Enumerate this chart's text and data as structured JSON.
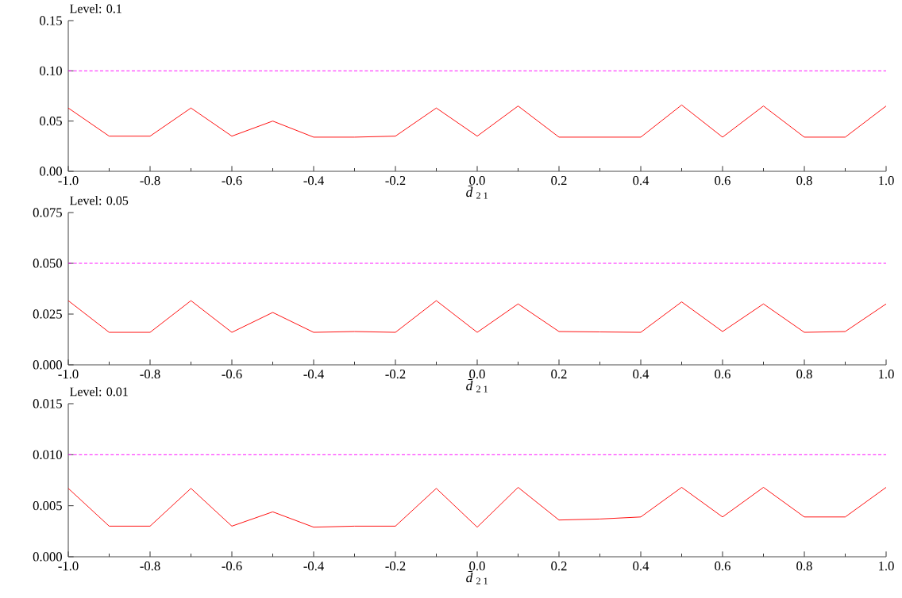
{
  "chart_data": [
    {
      "type": "line",
      "title": "Level: 0.1",
      "xlabel": "*d̄*$_{2 1}$",
      "x": [
        -1.0,
        -0.9,
        -0.8,
        -0.7,
        -0.6,
        -0.5,
        -0.4,
        -0.3,
        -0.2,
        -0.1,
        0.0,
        0.1,
        0.2,
        0.3,
        0.4,
        0.5,
        0.6,
        0.7,
        0.8,
        0.9,
        1.0
      ],
      "series": [
        {
          "color": "#ff0000",
          "values": [
            0.063,
            0.035,
            0.035,
            0.063,
            0.035,
            0.05,
            0.034,
            0.034,
            0.035,
            0.063,
            0.035,
            0.065,
            0.034,
            0.034,
            0.034,
            0.066,
            0.034,
            0.065,
            0.034,
            0.034,
            0.065
          ]
        }
      ],
      "xlim": [
        -1.0,
        1.0
      ],
      "ylim": [
        0,
        0.15
      ],
      "xticks": [
        {
          "value": -1.0,
          "label": "-1.0"
        },
        {
          "value": -0.8,
          "label": "-0.8"
        },
        {
          "value": -0.6,
          "label": "-0.6"
        },
        {
          "value": -0.4,
          "label": "-0.4"
        },
        {
          "value": -0.2,
          "label": "-0.2"
        },
        {
          "value": 0.0,
          "label": "0.0"
        },
        {
          "value": 0.2,
          "label": "0.2"
        },
        {
          "value": 0.4,
          "label": "0.4"
        },
        {
          "value": 0.6,
          "label": "0.6"
        },
        {
          "value": 0.8,
          "label": "0.8"
        },
        {
          "value": 1.0,
          "label": "1.0"
        }
      ],
      "yticks": [
        {
          "value": 0,
          "label": "0.00"
        },
        {
          "value": 0.05,
          "label": "0.05"
        },
        {
          "value": 0.1,
          "label": "0.10"
        },
        {
          "value": 0.15,
          "label": "0.15"
        }
      ],
      "ref_lines": [
        {
          "axis": "y",
          "value": 0.1,
          "color": "#ff00ff",
          "line_style": "dashed"
        }
      ],
      "marker": "none"
    },
    {
      "type": "line",
      "title": "Level: 0.05",
      "xlabel": "*d̄*$_{2 1}$",
      "x": [
        -1.0,
        -0.9,
        -0.8,
        -0.7,
        -0.6,
        -0.5,
        -0.4,
        -0.3,
        -0.2,
        -0.1,
        0.0,
        0.1,
        0.2,
        0.3,
        0.4,
        0.5,
        0.6,
        0.7,
        0.8,
        0.9,
        1.0
      ],
      "series": [
        {
          "color": "#ff0000",
          "values": [
            0.0316,
            0.016,
            0.016,
            0.0316,
            0.016,
            0.0258,
            0.016,
            0.0164,
            0.016,
            0.0316,
            0.016,
            0.03,
            0.0164,
            0.0162,
            0.016,
            0.031,
            0.0164,
            0.03,
            0.016,
            0.0164,
            0.03
          ]
        }
      ],
      "xlim": [
        -1.0,
        1.0
      ],
      "ylim": [
        0,
        0.075
      ],
      "xticks": [
        {
          "value": -1.0,
          "label": "-1.0"
        },
        {
          "value": -0.8,
          "label": "-0.8"
        },
        {
          "value": -0.6,
          "label": "-0.6"
        },
        {
          "value": -0.4,
          "label": "-0.4"
        },
        {
          "value": -0.2,
          "label": "-0.2"
        },
        {
          "value": 0.0,
          "label": "0.0"
        },
        {
          "value": 0.2,
          "label": "0.2"
        },
        {
          "value": 0.4,
          "label": "0.4"
        },
        {
          "value": 0.6,
          "label": "0.6"
        },
        {
          "value": 0.8,
          "label": "0.8"
        },
        {
          "value": 1.0,
          "label": "1.0"
        }
      ],
      "yticks": [
        {
          "value": 0,
          "label": "0.000"
        },
        {
          "value": 0.025,
          "label": "0.025"
        },
        {
          "value": 0.05,
          "label": "0.050"
        },
        {
          "value": 0.075,
          "label": "0.075"
        }
      ],
      "ref_lines": [
        {
          "axis": "y",
          "value": 0.05,
          "color": "#ff00ff",
          "line_style": "dashed"
        }
      ],
      "marker": "none"
    },
    {
      "type": "line",
      "title": "Level: 0.01",
      "xlabel": "*d̄*$_{2 1}$",
      "x": [
        -1.0,
        -0.9,
        -0.8,
        -0.7,
        -0.6,
        -0.5,
        -0.4,
        -0.3,
        -0.2,
        -0.1,
        0.0,
        0.1,
        0.2,
        0.3,
        0.4,
        0.5,
        0.6,
        0.7,
        0.8,
        0.9,
        1.0
      ],
      "series": [
        {
          "color": "#ff0000",
          "values": [
            0.0067,
            0.003,
            0.003,
            0.0067,
            0.003,
            0.0044,
            0.0029,
            0.003,
            0.003,
            0.0067,
            0.0029,
            0.0068,
            0.0036,
            0.0037,
            0.0039,
            0.0068,
            0.0039,
            0.0068,
            0.0039,
            0.0039,
            0.0068
          ]
        }
      ],
      "xlim": [
        -1.0,
        1.0
      ],
      "ylim": [
        0,
        0.015
      ],
      "xticks": [
        {
          "value": -1.0,
          "label": "-1.0"
        },
        {
          "value": -0.8,
          "label": "-0.8"
        },
        {
          "value": -0.6,
          "label": "-0.6"
        },
        {
          "value": -0.4,
          "label": "-0.4"
        },
        {
          "value": -0.2,
          "label": "-0.2"
        },
        {
          "value": 0.0,
          "label": "0.0"
        },
        {
          "value": 0.2,
          "label": "0.2"
        },
        {
          "value": 0.4,
          "label": "0.4"
        },
        {
          "value": 0.6,
          "label": "0.6"
        },
        {
          "value": 0.8,
          "label": "0.8"
        },
        {
          "value": 1.0,
          "label": "1.0"
        }
      ],
      "yticks": [
        {
          "value": 0,
          "label": "0.000"
        },
        {
          "value": 0.005,
          "label": "0.005"
        },
        {
          "value": 0.01,
          "label": "0.010"
        },
        {
          "value": 0.015,
          "label": "0.015"
        }
      ],
      "ref_lines": [
        {
          "axis": "y",
          "value": 0.01,
          "color": "#ff00ff",
          "line_style": "dashed"
        }
      ],
      "marker": "none"
    }
  ]
}
